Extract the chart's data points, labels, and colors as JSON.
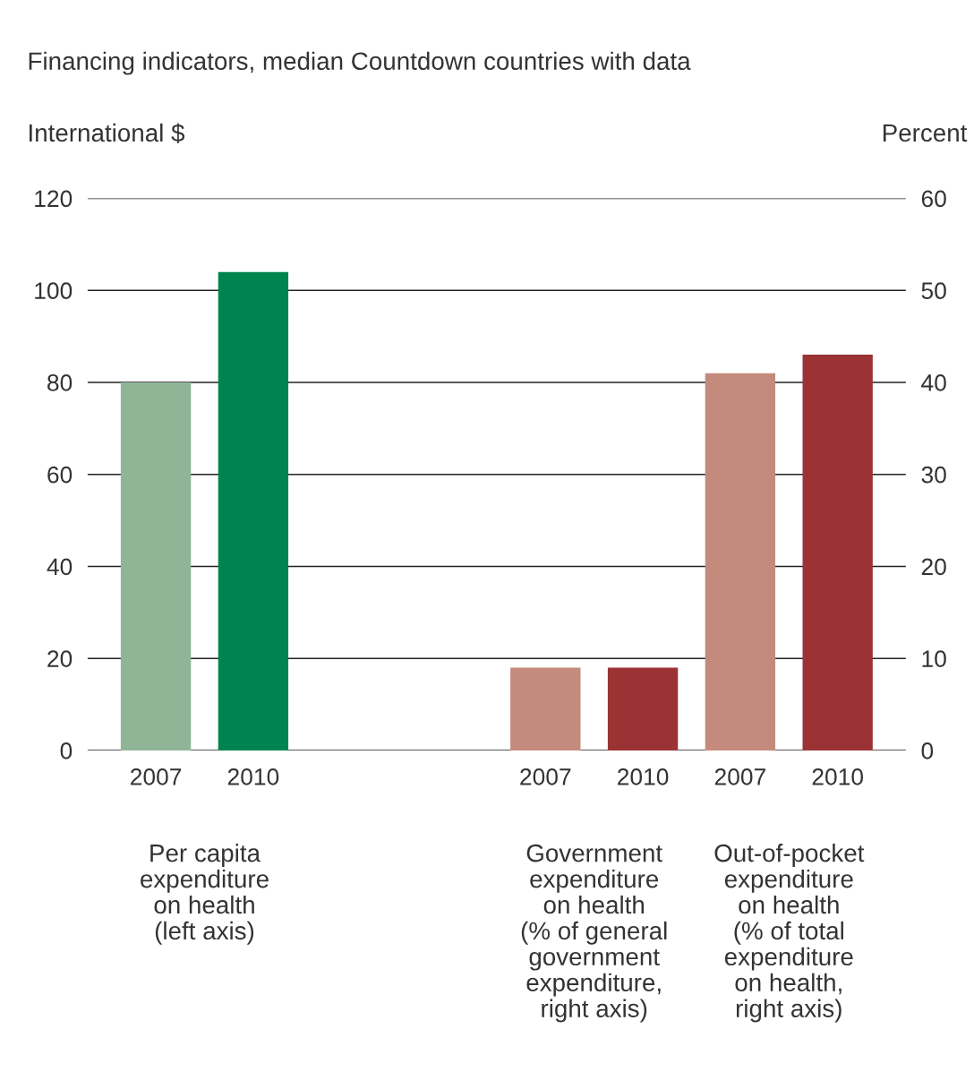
{
  "chart_data": {
    "type": "bar",
    "title": "Financing indicators, median Countdown countries with data",
    "ylabel": "International $",
    "y2label": "Percent",
    "categories": [
      "2007",
      "2010",
      null,
      null,
      "2007",
      "2010",
      "2007",
      "2010"
    ],
    "series": [
      {
        "colors": [
          "#8fb597",
          "#00844f",
          null,
          null,
          null,
          null,
          null,
          null
        ],
        "values": [
          80,
          104,
          null,
          null,
          null,
          null,
          null,
          null
        ]
      },
      {
        "axis": "y2",
        "colors": [
          null,
          null,
          null,
          null,
          "#c48a7c",
          "#9b3335",
          "#c48a7c",
          "#9b3335"
        ],
        "values": [
          null,
          null,
          null,
          null,
          9,
          9,
          41,
          43
        ]
      }
    ],
    "annotations": [
      "Per capita\nexpenditure\non health\n(left axis)",
      "Government\nexpenditure\non health\n(% of general\ngovernment\nexpenditure,\nright axis)",
      "Out-of-pocket\nexpenditure\non health\n(% of total\nexpenditure\non health,\nright axis)"
    ],
    "ylim": [
      0,
      120
    ],
    "yticks": [
      0,
      20,
      40,
      60,
      80,
      100,
      120
    ],
    "y2lim": [
      0,
      60
    ],
    "y2ticks": [
      0,
      10,
      20,
      30,
      40,
      50,
      60
    ],
    "grid": "y",
    "legend": false
  }
}
